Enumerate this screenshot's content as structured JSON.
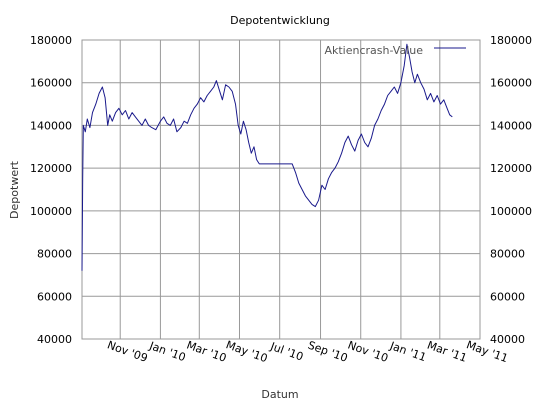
{
  "chart_data": {
    "type": "line",
    "title": "Depotentwicklung",
    "xlabel": "Datum",
    "ylabel": "Depotwert",
    "ylim": [
      40000,
      180000
    ],
    "xlim": [
      "2009-09-04",
      "2011-05-01"
    ],
    "y_ticks": [
      40000,
      60000,
      80000,
      100000,
      120000,
      140000,
      160000,
      180000
    ],
    "y_tick_labels": [
      "40000",
      "60000",
      "80000",
      "100000",
      "120000",
      "140000",
      "160000",
      "180000"
    ],
    "right_axis_mirrors_left": true,
    "x_ticks": [
      {
        "date": "2009-11-01",
        "label": "Nov '09"
      },
      {
        "date": "2010-01-01",
        "label": "Jan '10"
      },
      {
        "date": "2010-03-01",
        "label": "Mar '10"
      },
      {
        "date": "2010-05-01",
        "label": "May '10"
      },
      {
        "date": "2010-07-01",
        "label": "Jul '10"
      },
      {
        "date": "2010-09-01",
        "label": "Sep '10"
      },
      {
        "date": "2010-11-01",
        "label": "Nov '10"
      },
      {
        "date": "2011-01-01",
        "label": "Jan '11"
      },
      {
        "date": "2011-03-01",
        "label": "Mar '11"
      },
      {
        "date": "2011-05-01",
        "label": "May '11"
      }
    ],
    "grid": true,
    "legend_position": "top-right",
    "series": [
      {
        "name": "Aktiencrash-Value",
        "color": "#1a1a8c",
        "points": [
          [
            "2009-09-04",
            72000
          ],
          [
            "2009-09-05",
            115000
          ],
          [
            "2009-09-06",
            140000
          ],
          [
            "2009-09-09",
            137000
          ],
          [
            "2009-09-12",
            143000
          ],
          [
            "2009-09-16",
            139000
          ],
          [
            "2009-09-20",
            146000
          ],
          [
            "2009-09-25",
            150000
          ],
          [
            "2009-09-30",
            155000
          ],
          [
            "2009-10-05",
            158000
          ],
          [
            "2009-10-09",
            153000
          ],
          [
            "2009-10-13",
            140000
          ],
          [
            "2009-10-16",
            145000
          ],
          [
            "2009-10-20",
            142000
          ],
          [
            "2009-10-25",
            146000
          ],
          [
            "2009-10-30",
            148000
          ],
          [
            "2009-11-04",
            145000
          ],
          [
            "2009-11-09",
            147000
          ],
          [
            "2009-11-14",
            143000
          ],
          [
            "2009-11-19",
            146000
          ],
          [
            "2009-11-24",
            144000
          ],
          [
            "2009-11-29",
            142000
          ],
          [
            "2009-12-04",
            140000
          ],
          [
            "2009-12-09",
            143000
          ],
          [
            "2009-12-14",
            140000
          ],
          [
            "2009-12-19",
            139000
          ],
          [
            "2009-12-25",
            138000
          ],
          [
            "2010-01-01",
            142000
          ],
          [
            "2010-01-06",
            144000
          ],
          [
            "2010-01-11",
            141000
          ],
          [
            "2010-01-16",
            140000
          ],
          [
            "2010-01-21",
            143000
          ],
          [
            "2010-01-26",
            137000
          ],
          [
            "2010-02-01",
            139000
          ],
          [
            "2010-02-06",
            142000
          ],
          [
            "2010-02-11",
            141000
          ],
          [
            "2010-02-16",
            145000
          ],
          [
            "2010-02-21",
            148000
          ],
          [
            "2010-02-26",
            150000
          ],
          [
            "2010-03-03",
            153000
          ],
          [
            "2010-03-08",
            151000
          ],
          [
            "2010-03-13",
            154000
          ],
          [
            "2010-03-18",
            156000
          ],
          [
            "2010-03-23",
            158000
          ],
          [
            "2010-03-27",
            161000
          ],
          [
            "2010-04-01",
            156000
          ],
          [
            "2010-04-05",
            152000
          ],
          [
            "2010-04-10",
            159000
          ],
          [
            "2010-04-15",
            158000
          ],
          [
            "2010-04-20",
            156000
          ],
          [
            "2010-04-25",
            150000
          ],
          [
            "2010-04-29",
            140000
          ],
          [
            "2010-05-03",
            136000
          ],
          [
            "2010-05-07",
            142000
          ],
          [
            "2010-05-11",
            138000
          ],
          [
            "2010-05-15",
            132000
          ],
          [
            "2010-05-19",
            127000
          ],
          [
            "2010-05-23",
            130000
          ],
          [
            "2010-05-27",
            124000
          ],
          [
            "2010-05-31",
            122000
          ],
          [
            "2010-06-10",
            122000
          ],
          [
            "2010-06-25",
            122000
          ],
          [
            "2010-07-10",
            122000
          ],
          [
            "2010-07-20",
            122000
          ],
          [
            "2010-07-25",
            118000
          ],
          [
            "2010-07-30",
            113000
          ],
          [
            "2010-08-04",
            110000
          ],
          [
            "2010-08-09",
            107000
          ],
          [
            "2010-08-14",
            105000
          ],
          [
            "2010-08-19",
            103000
          ],
          [
            "2010-08-24",
            102000
          ],
          [
            "2010-08-29",
            105000
          ],
          [
            "2010-09-03",
            112000
          ],
          [
            "2010-09-08",
            110000
          ],
          [
            "2010-09-13",
            115000
          ],
          [
            "2010-09-18",
            118000
          ],
          [
            "2010-09-23",
            120000
          ],
          [
            "2010-09-28",
            123000
          ],
          [
            "2010-10-03",
            127000
          ],
          [
            "2010-10-08",
            132000
          ],
          [
            "2010-10-13",
            135000
          ],
          [
            "2010-10-18",
            131000
          ],
          [
            "2010-10-23",
            128000
          ],
          [
            "2010-10-28",
            133000
          ],
          [
            "2010-11-02",
            136000
          ],
          [
            "2010-11-07",
            132000
          ],
          [
            "2010-11-12",
            130000
          ],
          [
            "2010-11-17",
            134000
          ],
          [
            "2010-11-22",
            140000
          ],
          [
            "2010-11-27",
            143000
          ],
          [
            "2010-12-02",
            147000
          ],
          [
            "2010-12-07",
            150000
          ],
          [
            "2010-12-12",
            154000
          ],
          [
            "2010-12-17",
            156000
          ],
          [
            "2010-12-22",
            158000
          ],
          [
            "2010-12-27",
            155000
          ],
          [
            "2011-01-01",
            160000
          ],
          [
            "2011-01-06",
            168000
          ],
          [
            "2011-01-10",
            178000
          ],
          [
            "2011-01-14",
            172000
          ],
          [
            "2011-01-18",
            165000
          ],
          [
            "2011-01-22",
            160000
          ],
          [
            "2011-01-26",
            164000
          ],
          [
            "2011-01-31",
            160000
          ],
          [
            "2011-02-05",
            157000
          ],
          [
            "2011-02-10",
            152000
          ],
          [
            "2011-02-15",
            155000
          ],
          [
            "2011-02-20",
            151000
          ],
          [
            "2011-02-25",
            154000
          ],
          [
            "2011-03-02",
            150000
          ],
          [
            "2011-03-07",
            152000
          ],
          [
            "2011-03-12",
            148000
          ],
          [
            "2011-03-16",
            145000
          ],
          [
            "2011-03-20",
            144000
          ]
        ]
      }
    ]
  }
}
